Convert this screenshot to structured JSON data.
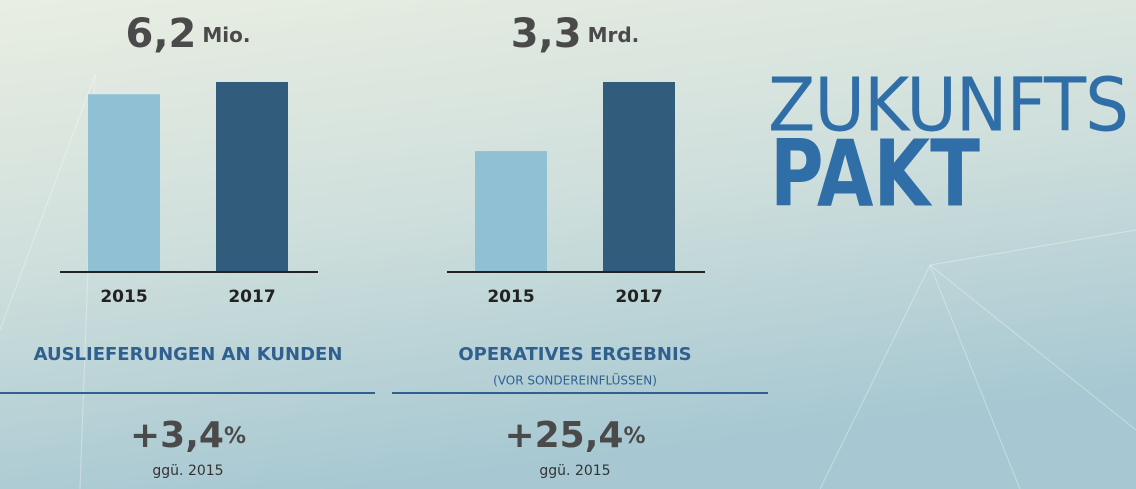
{
  "chart_data": [
    {
      "type": "bar",
      "headline": "6,2",
      "unit": "Mio.",
      "categories": [
        "2015",
        "2017"
      ],
      "values": [
        5.8,
        6.2
      ],
      "colors": [
        "#8fc0d3",
        "#325c7b"
      ],
      "title": "AUSLIEFERUNGEN AN KUNDEN",
      "change": "+3,4",
      "change_unit": "%",
      "change_note": "ggü. 2015"
    },
    {
      "type": "bar",
      "headline": "3,3",
      "unit": "Mrd.",
      "categories": [
        "2015",
        "2017"
      ],
      "values": [
        2.1,
        3.3
      ],
      "colors": [
        "#8fc0d3",
        "#325c7b"
      ],
      "title": "OPERATIVES ERGEBNIS",
      "subtitle": "(VOR SONDEREINFLÜSSEN)",
      "change": "+25,4",
      "change_unit": "%",
      "change_note": "ggü. 2015"
    }
  ],
  "logo": {
    "line1": "ZUKUNFTS",
    "line2": "PAKT"
  }
}
